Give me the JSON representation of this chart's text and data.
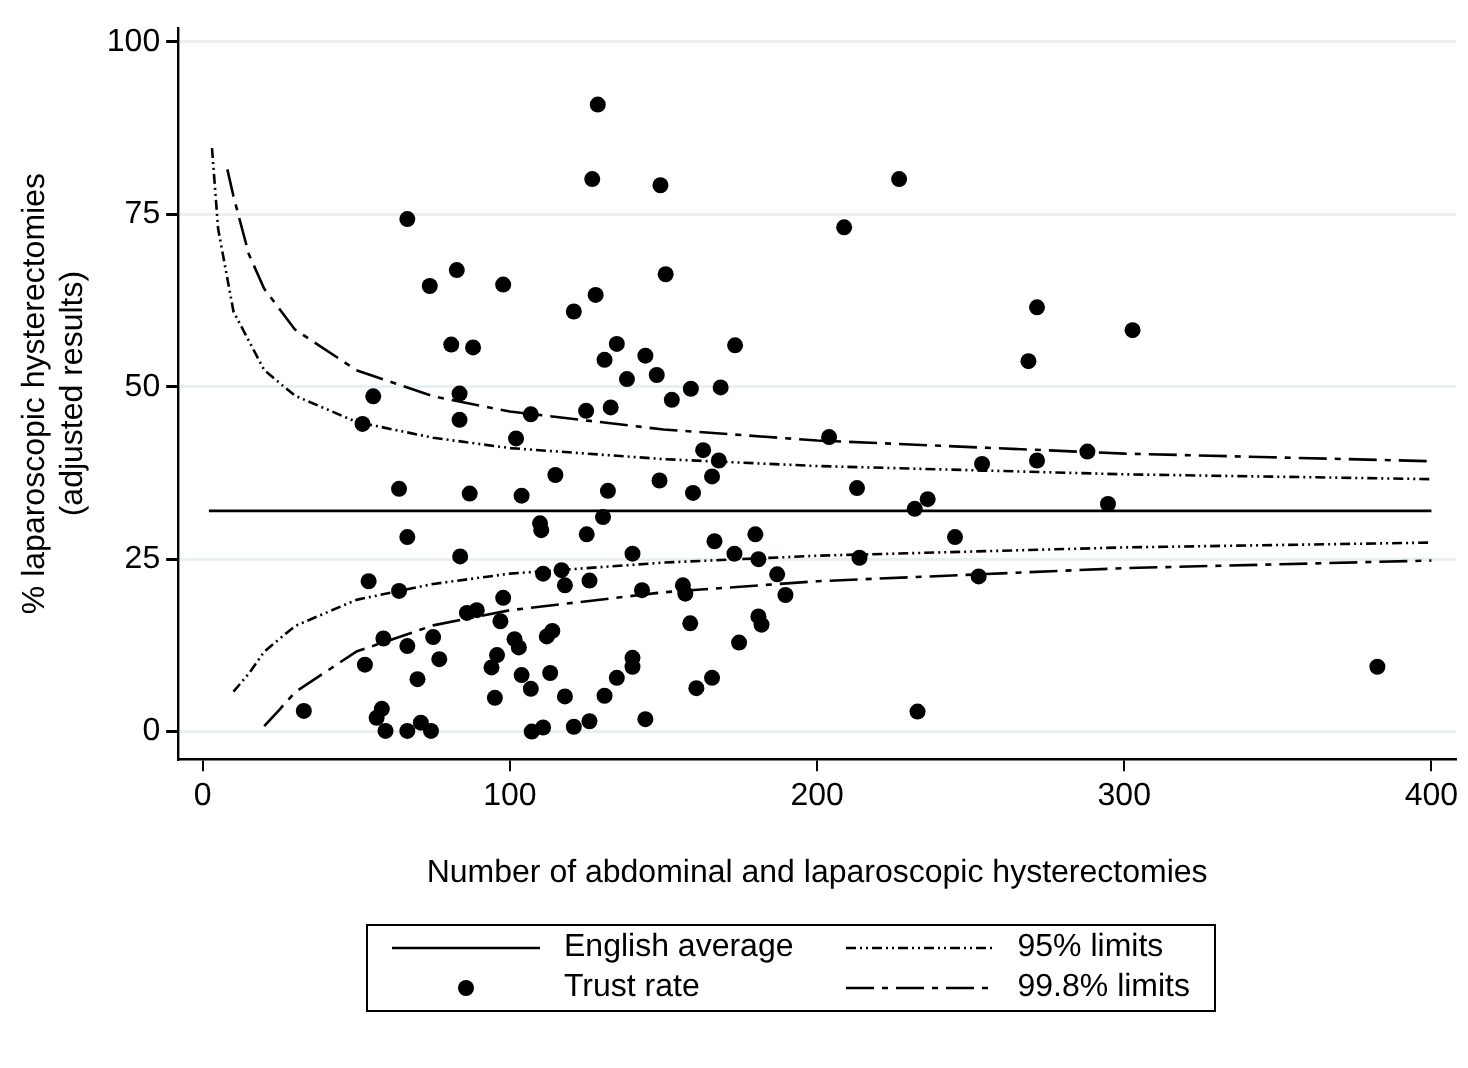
{
  "chart_data": {
    "type": "scatter",
    "xlabel": "Number of abdominal and laparoscopic hysterectomies",
    "ylabel": "% laparoscopic hysterectomies\n(adjusted results)",
    "xlim": [
      -8,
      408
    ],
    "xticks": [
      0,
      100,
      200,
      300,
      400
    ],
    "ylim": [
      -4,
      102
    ],
    "yticks": [
      0,
      25,
      50,
      75,
      100
    ],
    "grid": "y",
    "legend": "bottom",
    "series": [
      {
        "name": "English average",
        "type": "line",
        "color": "#000000",
        "marker": "none",
        "line_style": "solid",
        "x": [
          2,
          400
        ],
        "values": [
          32,
          32
        ]
      },
      {
        "name": "95% limits",
        "type": "line",
        "color": "#000000",
        "marker": "none",
        "line_style": "dotted",
        "x": [
          3,
          5,
          10,
          20,
          30,
          50,
          75,
          100,
          150,
          200,
          300,
          400
        ],
        "values": [
          84.6,
          72.9,
          60.9,
          52.4,
          48.7,
          44.9,
          42.6,
          41.1,
          39.5,
          38.5,
          37.3,
          36.6
        ]
      },
      {
        "type": "line",
        "color": "#000000",
        "marker": "none",
        "line_style": "dotted",
        "x": [
          10,
          15,
          20,
          30,
          50,
          75,
          100,
          150,
          200,
          300,
          400
        ],
        "values": [
          5.8,
          8.4,
          11.6,
          15.3,
          19.1,
          21.4,
          22.9,
          24.5,
          25.5,
          26.7,
          27.4
        ]
      },
      {
        "name": "Trust rate",
        "type": "scatter",
        "color": "#000000",
        "marker": "circle",
        "x": [
          66.6,
          73.9,
          82.7,
          80.9,
          55.5,
          52,
          83.6,
          83.6,
          63.9,
          66.6,
          83.8,
          54,
          63.9,
          58.8,
          66.6,
          75,
          52.8,
          77,
          69.9,
          32.9,
          58.3,
          56.6,
          59.5,
          66.6,
          71,
          74.3,
          88,
          128.6,
          126.8,
          149,
          150.7,
          97.8,
          127.9,
          120.8,
          134.8,
          130.8,
          144.1,
          138.1,
          147.8,
          152.7,
          158.9,
          168.6,
          173.3,
          106.8,
          124.8,
          132.8,
          102,
          162.9,
          168,
          114.8,
          165.8,
          148.7,
          86.9,
          103.8,
          131.9,
          159.6,
          109.8,
          110.2,
          130.3,
          125,
          139.9,
          166.6,
          173.1,
          110.8,
          116.8,
          117.9,
          125.9,
          143,
          156.3,
          157.1,
          86,
          89.2,
          97.8,
          96.9,
          158.7,
          112,
          113.8,
          101.5,
          102.9,
          174.6,
          95.8,
          94,
          139.9,
          139.9,
          103.8,
          113.1,
          134.8,
          106.8,
          165.8,
          160.7,
          95.1,
          117.9,
          130.8,
          107.1,
          110.8,
          120.8,
          125.9,
          144.1,
          226.7,
          208.8,
          271.6,
          302.7,
          268.8,
          203.9,
          288,
          253.7,
          271.6,
          213,
          236,
          231.8,
          294.7,
          179.9,
          180.9,
          244.9,
          213.8,
          187,
          252.6,
          189.7,
          180.9,
          181.9,
          382.4,
          232.7
        ],
        "values": [
          74.3,
          64.6,
          66.9,
          56.1,
          48.6,
          44.6,
          49,
          45.2,
          35.2,
          28.2,
          25.4,
          21.8,
          20.4,
          13.5,
          12.4,
          13.7,
          9.7,
          10.5,
          7.6,
          3,
          3.3,
          2,
          0.1,
          0.1,
          1.3,
          0.1,
          55.7,
          90.9,
          80.1,
          79.2,
          66.3,
          64.8,
          63.3,
          60.9,
          56.2,
          53.9,
          54.5,
          51.1,
          51.7,
          48.1,
          49.7,
          49.9,
          56,
          46,
          46.5,
          47,
          42.5,
          40.8,
          39.3,
          37.2,
          37,
          36.4,
          34.5,
          34.2,
          34.9,
          34.6,
          30.2,
          29.2,
          31.1,
          28.6,
          25.8,
          27.6,
          25.8,
          22.9,
          23.4,
          21.2,
          21.9,
          20.5,
          21.2,
          20,
          17.2,
          17.6,
          19.4,
          16,
          15.7,
          13.8,
          14.6,
          13.4,
          12.2,
          12.9,
          11.1,
          9.3,
          10.7,
          9.4,
          8.2,
          8.5,
          7.8,
          6.2,
          7.8,
          6.3,
          4.9,
          5.1,
          5.2,
          0,
          0.6,
          0.7,
          1.5,
          1.8,
          80.1,
          73.1,
          61.5,
          58.2,
          53.7,
          42.7,
          40.6,
          38.8,
          39.3,
          35.3,
          33.7,
          32.3,
          33,
          28.6,
          25,
          28.2,
          25.2,
          22.8,
          22.5,
          19.8,
          16.7,
          15.5,
          9.4,
          2.9
        ]
      },
      {
        "name": "99.8% limits",
        "type": "line",
        "color": "#000000",
        "marker": "none",
        "line_style": "dashed",
        "x": [
          8,
          10,
          15,
          20,
          30,
          50,
          75,
          100,
          150,
          200,
          300,
          400
        ],
        "values": [
          81.5,
          77.6,
          69.2,
          64.2,
          58.3,
          52.4,
          48.6,
          46.4,
          43.8,
          42.2,
          40.3,
          39.2
        ]
      },
      {
        "type": "line",
        "color": "#000000",
        "marker": "none",
        "line_style": "dashed",
        "x": [
          20,
          25,
          30,
          50,
          75,
          100,
          150,
          200,
          300,
          400
        ],
        "values": [
          0.8,
          3.2,
          5.7,
          11.6,
          15.4,
          17.6,
          20.2,
          21.8,
          23.7,
          24.8
        ]
      }
    ]
  }
}
